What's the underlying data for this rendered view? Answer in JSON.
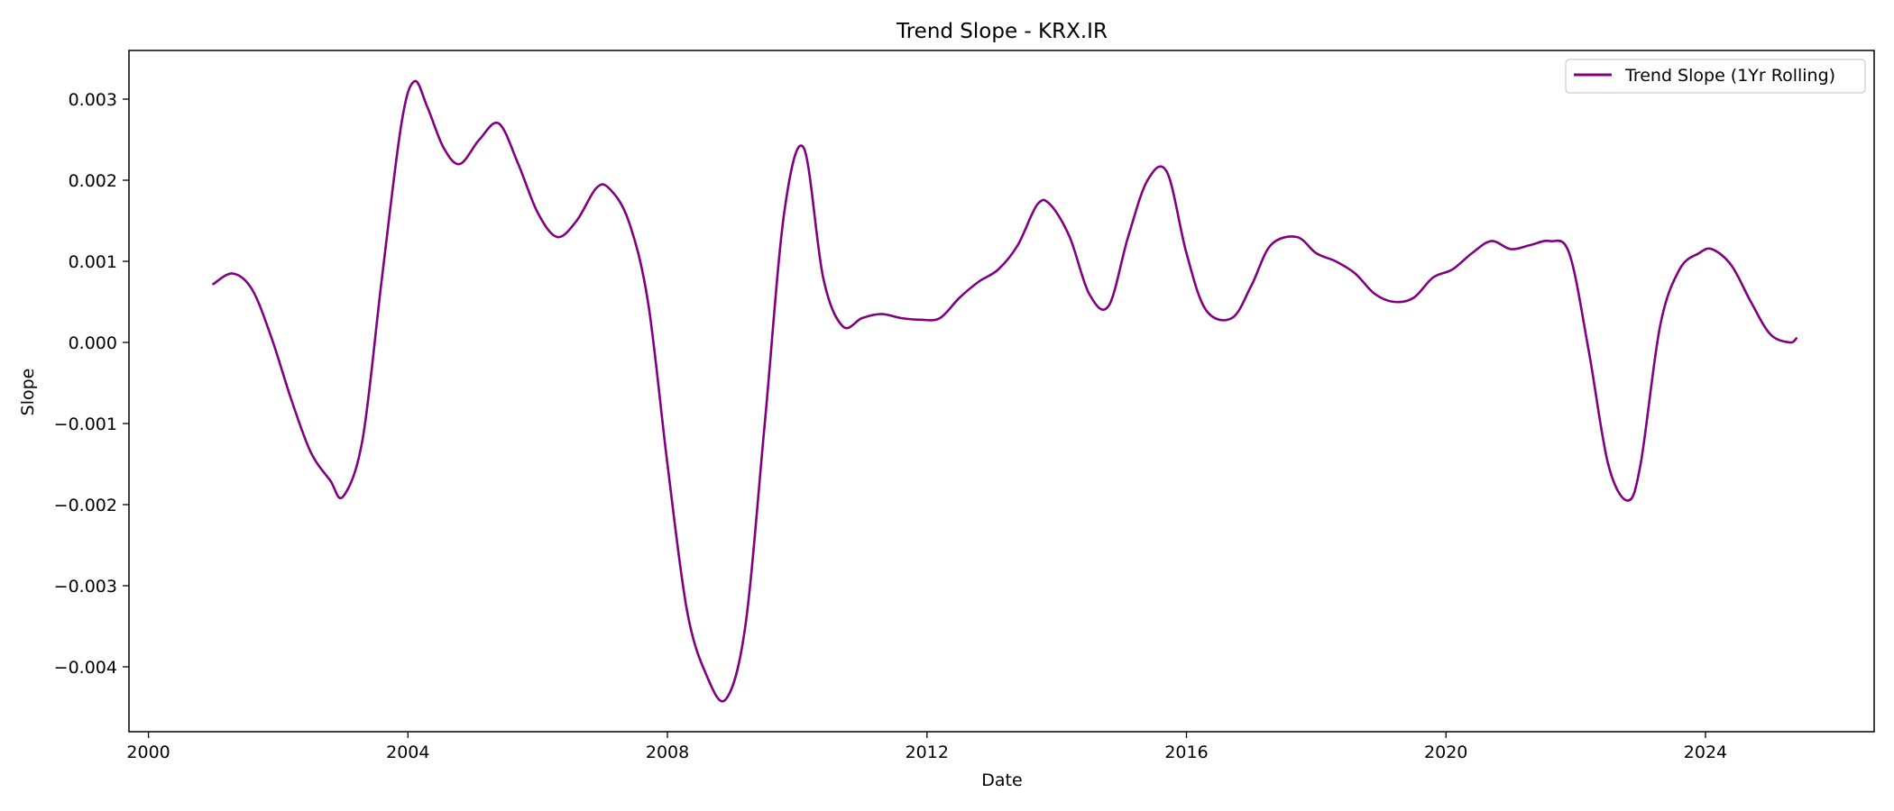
{
  "chart_data": {
    "type": "line",
    "title": "Trend Slope - KRX.IR",
    "xlabel": "Date",
    "ylabel": "Slope",
    "xlim": [
      1999.7,
      2026.6
    ],
    "ylim": [
      -0.0048,
      0.0036
    ],
    "xticks": [
      2000,
      2004,
      2008,
      2012,
      2016,
      2020,
      2024
    ],
    "xtick_labels": [
      "2000",
      "2004",
      "2008",
      "2012",
      "2016",
      "2020",
      "2024"
    ],
    "yticks": [
      -0.004,
      -0.003,
      -0.002,
      -0.001,
      0.0,
      0.001,
      0.002,
      0.003
    ],
    "ytick_labels": [
      "−0.004",
      "−0.003",
      "−0.002",
      "−0.001",
      "0.000",
      "0.001",
      "0.002",
      "0.003"
    ],
    "grid": false,
    "legend_position": "top-right",
    "color": "#800080",
    "series": [
      {
        "name": "Trend Slope (1Yr Rolling)",
        "x": [
          2001.0,
          2001.3,
          2001.6,
          2001.9,
          2002.2,
          2002.5,
          2002.8,
          2003.0,
          2003.3,
          2003.6,
          2003.9,
          2004.1,
          2004.3,
          2004.55,
          2004.8,
          2005.1,
          2005.4,
          2005.7,
          2006.0,
          2006.3,
          2006.6,
          2006.9,
          2007.1,
          2007.4,
          2007.7,
          2008.0,
          2008.3,
          2008.6,
          2008.9,
          2009.2,
          2009.5,
          2009.8,
          2010.1,
          2010.4,
          2010.7,
          2011.0,
          2011.3,
          2011.6,
          2011.9,
          2012.2,
          2012.5,
          2012.8,
          2013.1,
          2013.4,
          2013.7,
          2013.9,
          2014.2,
          2014.5,
          2014.8,
          2015.1,
          2015.4,
          2015.7,
          2016.0,
          2016.3,
          2016.7,
          2017.0,
          2017.3,
          2017.7,
          2018.0,
          2018.3,
          2018.6,
          2018.9,
          2019.2,
          2019.5,
          2019.8,
          2020.1,
          2020.4,
          2020.7,
          2021.0,
          2021.3,
          2021.6,
          2021.9,
          2022.2,
          2022.5,
          2022.8,
          2023.0,
          2023.3,
          2023.6,
          2023.9,
          2024.1,
          2024.4,
          2024.7,
          2025.0,
          2025.3,
          2025.4
        ],
        "y": [
          0.00072,
          0.00085,
          0.00065,
          5e-05,
          -0.0007,
          -0.00135,
          -0.0017,
          -0.0019,
          -0.0012,
          0.0008,
          0.0027,
          0.00322,
          0.0029,
          0.0024,
          0.0022,
          0.0025,
          0.0027,
          0.0022,
          0.0016,
          0.0013,
          0.0015,
          0.0019,
          0.0019,
          0.0015,
          0.0005,
          -0.0015,
          -0.0033,
          -0.0041,
          -0.0044,
          -0.0035,
          -0.001,
          0.0016,
          0.0024,
          0.0008,
          0.0002,
          0.0003,
          0.00035,
          0.0003,
          0.00028,
          0.0003,
          0.00055,
          0.00075,
          0.0009,
          0.0012,
          0.0017,
          0.0017,
          0.0013,
          0.0006,
          0.00045,
          0.0013,
          0.002,
          0.0021,
          0.0011,
          0.0004,
          0.0003,
          0.0007,
          0.0012,
          0.0013,
          0.0011,
          0.001,
          0.00085,
          0.0006,
          0.0005,
          0.00055,
          0.0008,
          0.0009,
          0.0011,
          0.00125,
          0.00115,
          0.0012,
          0.00125,
          0.0011,
          -0.0001,
          -0.0015,
          -0.00195,
          -0.0015,
          0.0002,
          0.0009,
          0.0011,
          0.00115,
          0.00095,
          0.0005,
          0.0001,
          0.0,
          5e-05
        ]
      }
    ]
  }
}
